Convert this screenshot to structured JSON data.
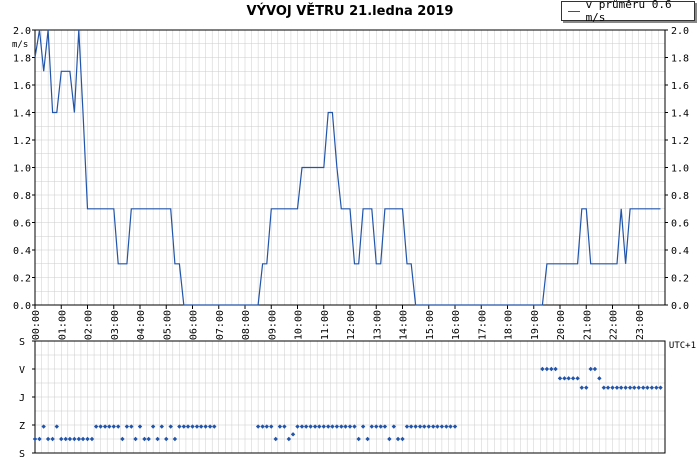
{
  "title": "VÝVOJ VĚTRU  21.ledna 2019",
  "legend": {
    "label": "v průměru 0.6 m/s"
  },
  "colors": {
    "line": "#2255aa",
    "grid": "#cccccc",
    "axis": "#000000"
  },
  "chart_data": [
    {
      "type": "line",
      "ylabel": "m/s",
      "ylim": [
        0,
        2.0
      ],
      "yticks": [
        "0.0",
        "0.2",
        "0.4",
        "0.6",
        "0.8",
        "1.0",
        "1.2",
        "1.4",
        "1.6",
        "1.8",
        "2.0"
      ],
      "xlim": [
        0,
        24
      ],
      "xticks": [
        "00:00",
        "01:00",
        "02:00",
        "03:00",
        "04:00",
        "05:00",
        "06:00",
        "07:00",
        "08:00",
        "09:00",
        "10:00",
        "11:00",
        "12:00",
        "13:00",
        "14:00",
        "15:00",
        "16:00",
        "17:00",
        "18:00",
        "19:00",
        "20:00",
        "21:00",
        "22:00",
        "23:00"
      ],
      "xaxis_note": "UTC+1",
      "grid": true,
      "series": [
        {
          "name": "v průměru 0.6 m/s",
          "x": [
            0.0,
            0.17,
            0.33,
            0.5,
            0.67,
            0.83,
            1.0,
            1.17,
            1.33,
            1.5,
            1.67,
            1.83,
            2.0,
            2.17,
            2.33,
            2.5,
            2.67,
            2.83,
            3.0,
            3.17,
            3.33,
            3.5,
            3.67,
            3.83,
            4.0,
            4.17,
            4.33,
            4.5,
            4.67,
            4.83,
            5.0,
            5.17,
            5.33,
            5.5,
            5.67,
            5.83,
            6.0,
            6.17,
            6.33,
            6.5,
            6.67,
            6.83,
            7.0,
            7.17,
            7.33,
            8.5,
            8.67,
            8.83,
            9.0,
            9.17,
            9.33,
            9.5,
            9.67,
            9.83,
            10.0,
            10.17,
            10.33,
            10.5,
            10.67,
            10.83,
            11.0,
            11.17,
            11.33,
            11.5,
            11.67,
            11.83,
            12.0,
            12.17,
            12.33,
            12.5,
            12.67,
            12.83,
            13.0,
            13.17,
            13.33,
            13.5,
            13.67,
            13.83,
            14.0,
            14.17,
            14.33,
            14.5,
            14.67,
            14.83,
            15.0,
            15.17,
            15.33,
            15.5,
            15.67,
            15.83,
            16.0,
            16.17,
            16.33,
            19.33,
            19.5,
            19.67,
            19.83,
            20.0,
            20.17,
            20.33,
            20.5,
            20.67,
            20.83,
            21.0,
            21.17,
            21.33,
            21.5,
            21.67,
            21.83,
            22.0,
            22.17,
            22.33,
            22.5,
            22.67,
            22.83,
            23.0,
            23.17,
            23.33,
            23.5,
            23.67,
            23.83
          ],
          "values": [
            1.8,
            2.0,
            1.7,
            2.0,
            1.4,
            1.4,
            1.7,
            1.7,
            1.7,
            1.4,
            2.0,
            1.4,
            0.7,
            0.7,
            0.7,
            0.7,
            0.7,
            0.7,
            0.7,
            0.3,
            0.3,
            0.3,
            0.7,
            0.7,
            0.7,
            0.7,
            0.7,
            0.7,
            0.7,
            0.7,
            0.7,
            0.7,
            0.3,
            0.3,
            0.0,
            0.0,
            0.0,
            0.0,
            0.0,
            0.0,
            0.0,
            0.0,
            0.0,
            0.0,
            0.0,
            0.0,
            0.3,
            0.3,
            0.7,
            0.7,
            0.7,
            0.7,
            0.7,
            0.7,
            0.7,
            1.0,
            1.0,
            1.0,
            1.0,
            1.0,
            1.0,
            1.4,
            1.4,
            1.0,
            0.7,
            0.7,
            0.7,
            0.3,
            0.3,
            0.7,
            0.7,
            0.7,
            0.3,
            0.3,
            0.7,
            0.7,
            0.7,
            0.7,
            0.7,
            0.3,
            0.3,
            0.0,
            0.0,
            0.0,
            0.0,
            0.0,
            0.0,
            0.0,
            0.0,
            0.0,
            0.0,
            0.0,
            0.0,
            0.0,
            0.3,
            0.3,
            0.3,
            0.3,
            0.3,
            0.3,
            0.3,
            0.3,
            0.7,
            0.7,
            0.3,
            0.3,
            0.3,
            0.3,
            0.3,
            0.3,
            0.3,
            0.7,
            0.3,
            0.7,
            0.7,
            0.7,
            0.7,
            0.7,
            0.7,
            0.7,
            0.7
          ]
        }
      ]
    },
    {
      "type": "scatter",
      "yticks": [
        "S",
        "V",
        "J",
        "Z",
        "S"
      ],
      "xlim": [
        0,
        24
      ],
      "grid": true,
      "series": [
        {
          "x": [
            0.0,
            0.17,
            0.33,
            0.5,
            0.67,
            0.83,
            1.0,
            1.17,
            1.33,
            1.5,
            1.67,
            1.83,
            2.0,
            2.17,
            2.33,
            2.5,
            2.67,
            2.83,
            3.0,
            3.17,
            3.33,
            3.5,
            3.67,
            3.83,
            4.0,
            4.17,
            4.33,
            4.5,
            4.67,
            4.83,
            5.0,
            5.17,
            5.33,
            5.5,
            5.67,
            5.83,
            6.0,
            6.17,
            6.33,
            6.5,
            6.67,
            6.83,
            8.5,
            8.67,
            8.83,
            9.0,
            9.17,
            9.33,
            9.5,
            9.67,
            9.83,
            10.0,
            10.17,
            10.33,
            10.5,
            10.67,
            10.83,
            11.0,
            11.17,
            11.33,
            11.5,
            11.67,
            11.83,
            12.0,
            12.17,
            12.33,
            12.5,
            12.67,
            12.83,
            13.0,
            13.17,
            13.33,
            13.5,
            13.67,
            13.83,
            14.0,
            14.17,
            14.33,
            14.5,
            14.67,
            14.83,
            15.0,
            15.17,
            15.33,
            15.5,
            15.67,
            15.83,
            16.0,
            19.33,
            19.5,
            19.67,
            19.83,
            20.0,
            20.17,
            20.33,
            20.5,
            20.67,
            20.83,
            21.0,
            21.17,
            21.33,
            21.5,
            21.67,
            21.83,
            22.0,
            22.17,
            22.33,
            22.5,
            22.67,
            22.83,
            23.0,
            23.17,
            23.33,
            23.5,
            23.67,
            23.83
          ],
          "values": [
            315,
            315,
            275,
            315,
            315,
            275,
            315,
            315,
            315,
            315,
            315,
            315,
            315,
            315,
            275,
            275,
            275,
            275,
            275,
            275,
            315,
            275,
            275,
            315,
            275,
            315,
            315,
            275,
            315,
            275,
            315,
            275,
            315,
            275,
            275,
            275,
            275,
            275,
            275,
            275,
            275,
            275,
            275,
            275,
            275,
            275,
            315,
            275,
            275,
            315,
            300,
            275,
            275,
            275,
            275,
            275,
            275,
            275,
            275,
            275,
            275,
            275,
            275,
            275,
            275,
            315,
            275,
            315,
            275,
            275,
            275,
            275,
            315,
            275,
            315,
            315,
            275,
            275,
            275,
            275,
            275,
            275,
            275,
            275,
            275,
            275,
            275,
            275,
            90,
            90,
            90,
            90,
            120,
            120,
            120,
            120,
            120,
            150,
            150,
            90,
            90,
            120,
            150,
            150,
            150,
            150,
            150,
            150,
            150,
            150,
            150,
            150,
            150,
            150,
            150,
            150
          ]
        }
      ]
    }
  ]
}
